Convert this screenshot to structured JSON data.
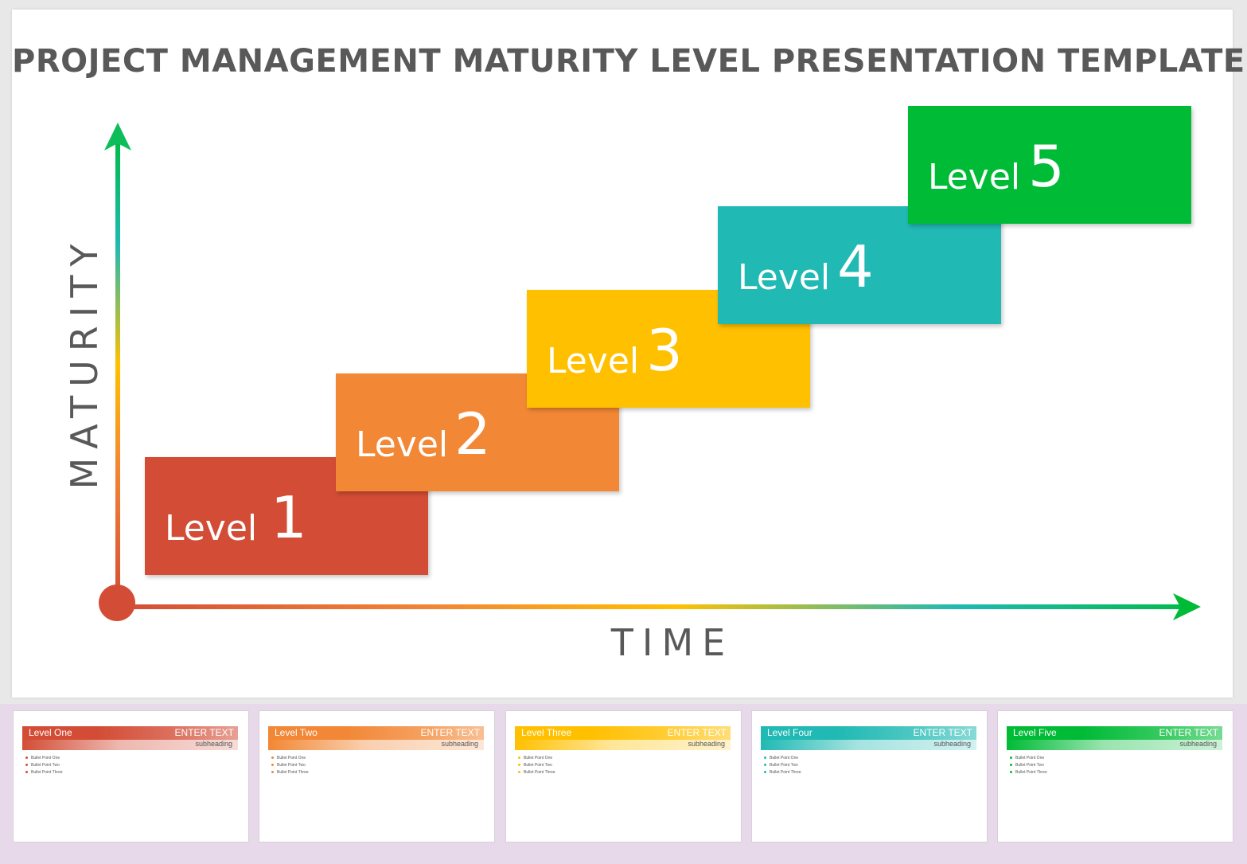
{
  "title": "PROJECT MANAGEMENT MATURITY LEVEL PRESENTATION TEMPLATE",
  "axes": {
    "y_label": "MATURITY",
    "x_label": "TIME"
  },
  "levels": [
    {
      "word": "Level",
      "number": "1",
      "color": "#d34d36"
    },
    {
      "word": "Level",
      "number": "2",
      "color": "#f28735"
    },
    {
      "word": "Level",
      "number": "3",
      "color": "#ffc000"
    },
    {
      "word": "Level",
      "number": "4",
      "color": "#20b9b3"
    },
    {
      "word": "Level",
      "number": "5",
      "color": "#00bb36"
    }
  ],
  "thumbnails": [
    {
      "title": "Level One",
      "enter": "ENTER TEXT",
      "subheading": "subheading",
      "color": "#d34d36",
      "bullets": [
        "Bullet Point One",
        "Bullet Point Two",
        "Bullet Point Three"
      ]
    },
    {
      "title": "Level Two",
      "enter": "ENTER TEXT",
      "subheading": "subheading",
      "color": "#f28735",
      "bullets": [
        "Bullet Point One",
        "Bullet Point Two",
        "Bullet Point Three"
      ]
    },
    {
      "title": "Level Three",
      "enter": "ENTER TEXT",
      "subheading": "subheading",
      "color": "#ffc000",
      "bullets": [
        "Bullet Point One",
        "Bullet Point Two",
        "Bullet Point Three"
      ]
    },
    {
      "title": "Level Four",
      "enter": "ENTER TEXT",
      "subheading": "subheading",
      "color": "#20b9b3",
      "bullets": [
        "Bullet Point One",
        "Bullet Point Two",
        "Bullet Point Three"
      ]
    },
    {
      "title": "Level Five",
      "enter": "ENTER TEXT",
      "subheading": "subheading",
      "color": "#00bb36",
      "bullets": [
        "Bullet Point One",
        "Bullet Point Two",
        "Bullet Point Three"
      ]
    }
  ]
}
